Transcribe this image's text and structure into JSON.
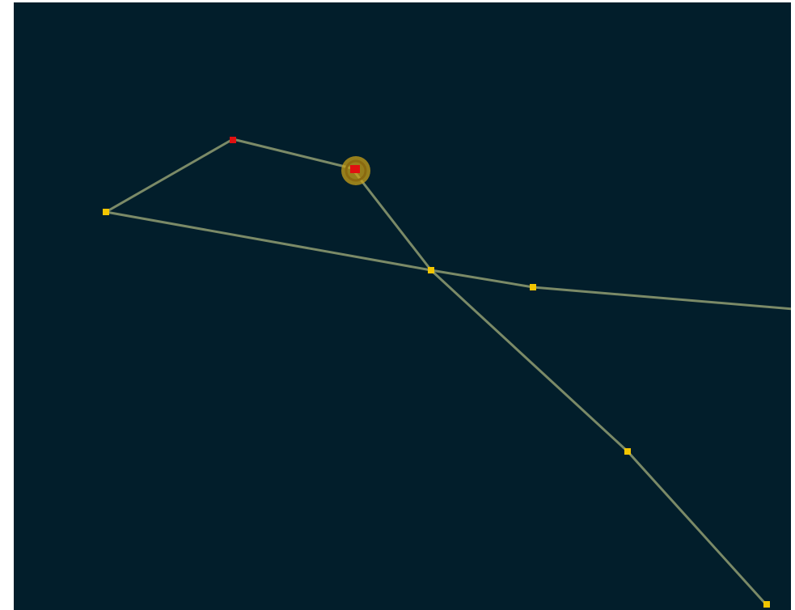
{
  "colors": {
    "background": "#021e2b",
    "route": "#7b8a67",
    "waypoint": "#f2c500",
    "enemy": "#e01010",
    "selection_ring": "#c8a018",
    "selection_ring_inner": "#8a6a10"
  },
  "map": {
    "routes": [
      {
        "name": "route-lower-crossing"
      },
      {
        "name": "route-diagonal"
      }
    ],
    "waypoints": [
      {
        "kind": "waypoint-yellow"
      },
      {
        "kind": "waypoint-yellow"
      },
      {
        "kind": "waypoint-yellow"
      },
      {
        "kind": "waypoint-yellow"
      },
      {
        "kind": "waypoint-yellow"
      }
    ],
    "enemies": [
      {
        "kind": "enemy-red"
      },
      {
        "kind": "enemy-red-selected"
      }
    ]
  }
}
